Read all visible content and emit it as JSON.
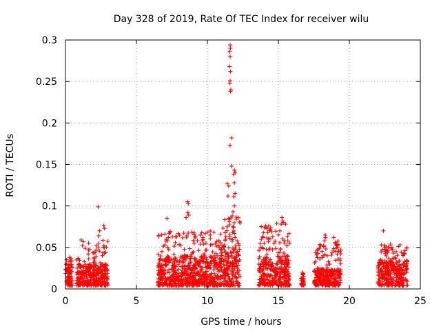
{
  "chart_data": {
    "type": "scatter",
    "title": "Day 328 of 2019, Rate Of TEC Index for receiver wilu",
    "xlabel": "GPS time / hours",
    "ylabel": "ROTI / TECUs",
    "xlim": [
      0,
      25
    ],
    "ylim": [
      0,
      0.3
    ],
    "x_ticks": [
      0,
      5,
      10,
      15,
      20,
      25
    ],
    "x_tick_labels": [
      "0",
      "5",
      "10",
      "15",
      "20",
      "25"
    ],
    "y_ticks": [
      0,
      0.05,
      0.1,
      0.15,
      0.2,
      0.25,
      0.3
    ],
    "y_tick_labels": [
      "0",
      "0.05",
      "0.1",
      "0.15",
      "0.2",
      "0.25",
      "0.3"
    ],
    "grid": true,
    "marker": "plus",
    "color": "#ff0000",
    "clusters": [
      {
        "x_range": [
          0.0,
          0.5
        ],
        "base_max": 0.03,
        "spike_max": 0.038
      },
      {
        "x_range": [
          0.8,
          3.0
        ],
        "base_max": 0.03,
        "spike_max": 0.06
      },
      {
        "x_range": [
          6.5,
          11.0
        ],
        "base_max": 0.04,
        "spike_max": 0.07
      },
      {
        "x_range": [
          11.0,
          12.3
        ],
        "base_max": 0.05,
        "spike_max": 0.09
      },
      {
        "x_range": [
          13.6,
          15.8
        ],
        "base_max": 0.04,
        "spike_max": 0.08
      },
      {
        "x_range": [
          16.6,
          16.8
        ],
        "base_max": 0.015,
        "spike_max": 0.02
      },
      {
        "x_range": [
          17.5,
          19.4
        ],
        "base_max": 0.025,
        "spike_max": 0.06
      },
      {
        "x_range": [
          22.0,
          24.1
        ],
        "base_max": 0.035,
        "spike_max": 0.054
      }
    ],
    "points": [
      [
        2.3,
        0.099
      ],
      [
        2.7,
        0.076
      ],
      [
        2.75,
        0.073
      ],
      [
        2.4,
        0.07
      ],
      [
        2.35,
        0.064
      ],
      [
        1.1,
        0.059
      ],
      [
        1.25,
        0.057
      ],
      [
        1.2,
        0.052
      ],
      [
        0.3,
        0.038
      ],
      [
        0.25,
        0.033
      ],
      [
        7.0,
        0.053
      ],
      [
        7.2,
        0.05
      ],
      [
        7.15,
        0.085
      ],
      [
        7.3,
        0.067
      ],
      [
        7.25,
        0.062
      ],
      [
        7.2,
        0.058
      ],
      [
        8.6,
        0.105
      ],
      [
        8.65,
        0.103
      ],
      [
        8.62,
        0.092
      ],
      [
        8.68,
        0.089
      ],
      [
        8.5,
        0.086
      ],
      [
        8.55,
        0.064
      ],
      [
        9.5,
        0.065
      ],
      [
        9.65,
        0.058
      ],
      [
        10.2,
        0.065
      ],
      [
        10.55,
        0.055
      ],
      [
        11.1,
        0.05
      ],
      [
        11.2,
        0.053
      ],
      [
        11.3,
        0.063
      ],
      [
        11.4,
        0.075
      ],
      [
        11.5,
        0.085
      ],
      [
        11.55,
        0.084
      ],
      [
        11.45,
        0.112
      ],
      [
        11.4,
        0.127
      ],
      [
        11.5,
        0.124
      ],
      [
        11.6,
        0.294
      ],
      [
        11.62,
        0.29
      ],
      [
        11.58,
        0.286
      ],
      [
        11.6,
        0.28
      ],
      [
        11.57,
        0.268
      ],
      [
        11.62,
        0.262
      ],
      [
        11.6,
        0.251
      ],
      [
        11.58,
        0.248
      ],
      [
        11.65,
        0.24
      ],
      [
        11.62,
        0.238
      ],
      [
        11.7,
        0.182
      ],
      [
        11.6,
        0.173
      ],
      [
        11.7,
        0.148
      ],
      [
        11.9,
        0.143
      ],
      [
        11.95,
        0.14
      ],
      [
        11.85,
        0.138
      ],
      [
        11.9,
        0.128
      ],
      [
        11.95,
        0.115
      ],
      [
        11.85,
        0.111
      ],
      [
        11.9,
        0.1
      ],
      [
        11.8,
        0.093
      ],
      [
        11.75,
        0.088
      ],
      [
        11.8,
        0.075
      ],
      [
        11.85,
        0.07
      ],
      [
        11.9,
        0.067
      ],
      [
        11.95,
        0.062
      ],
      [
        13.9,
        0.063
      ],
      [
        14.2,
        0.073
      ],
      [
        14.25,
        0.068
      ],
      [
        14.3,
        0.06
      ],
      [
        14.0,
        0.055
      ],
      [
        14.7,
        0.055
      ],
      [
        15.0,
        0.065
      ],
      [
        15.1,
        0.07
      ],
      [
        15.2,
        0.078
      ],
      [
        15.25,
        0.086
      ],
      [
        15.3,
        0.082
      ],
      [
        15.35,
        0.08
      ],
      [
        15.5,
        0.078
      ],
      [
        15.4,
        0.058
      ],
      [
        15.45,
        0.055
      ],
      [
        15.6,
        0.052
      ],
      [
        16.7,
        0.017
      ],
      [
        16.75,
        0.011
      ],
      [
        16.72,
        0.007
      ],
      [
        17.7,
        0.041
      ],
      [
        17.8,
        0.048
      ],
      [
        18.2,
        0.051
      ],
      [
        18.25,
        0.058
      ],
      [
        18.3,
        0.065
      ],
      [
        18.32,
        0.062
      ],
      [
        18.9,
        0.062
      ],
      [
        19.0,
        0.056
      ],
      [
        19.1,
        0.05
      ],
      [
        19.15,
        0.042
      ],
      [
        22.4,
        0.07
      ],
      [
        22.3,
        0.047
      ],
      [
        22.5,
        0.045
      ],
      [
        22.9,
        0.054
      ],
      [
        23.0,
        0.05
      ],
      [
        23.05,
        0.047
      ],
      [
        23.3,
        0.045
      ],
      [
        23.8,
        0.042
      ],
      [
        23.9,
        0.042
      ],
      [
        22.2,
        0.035
      ],
      [
        22.1,
        0.032
      ]
    ]
  }
}
